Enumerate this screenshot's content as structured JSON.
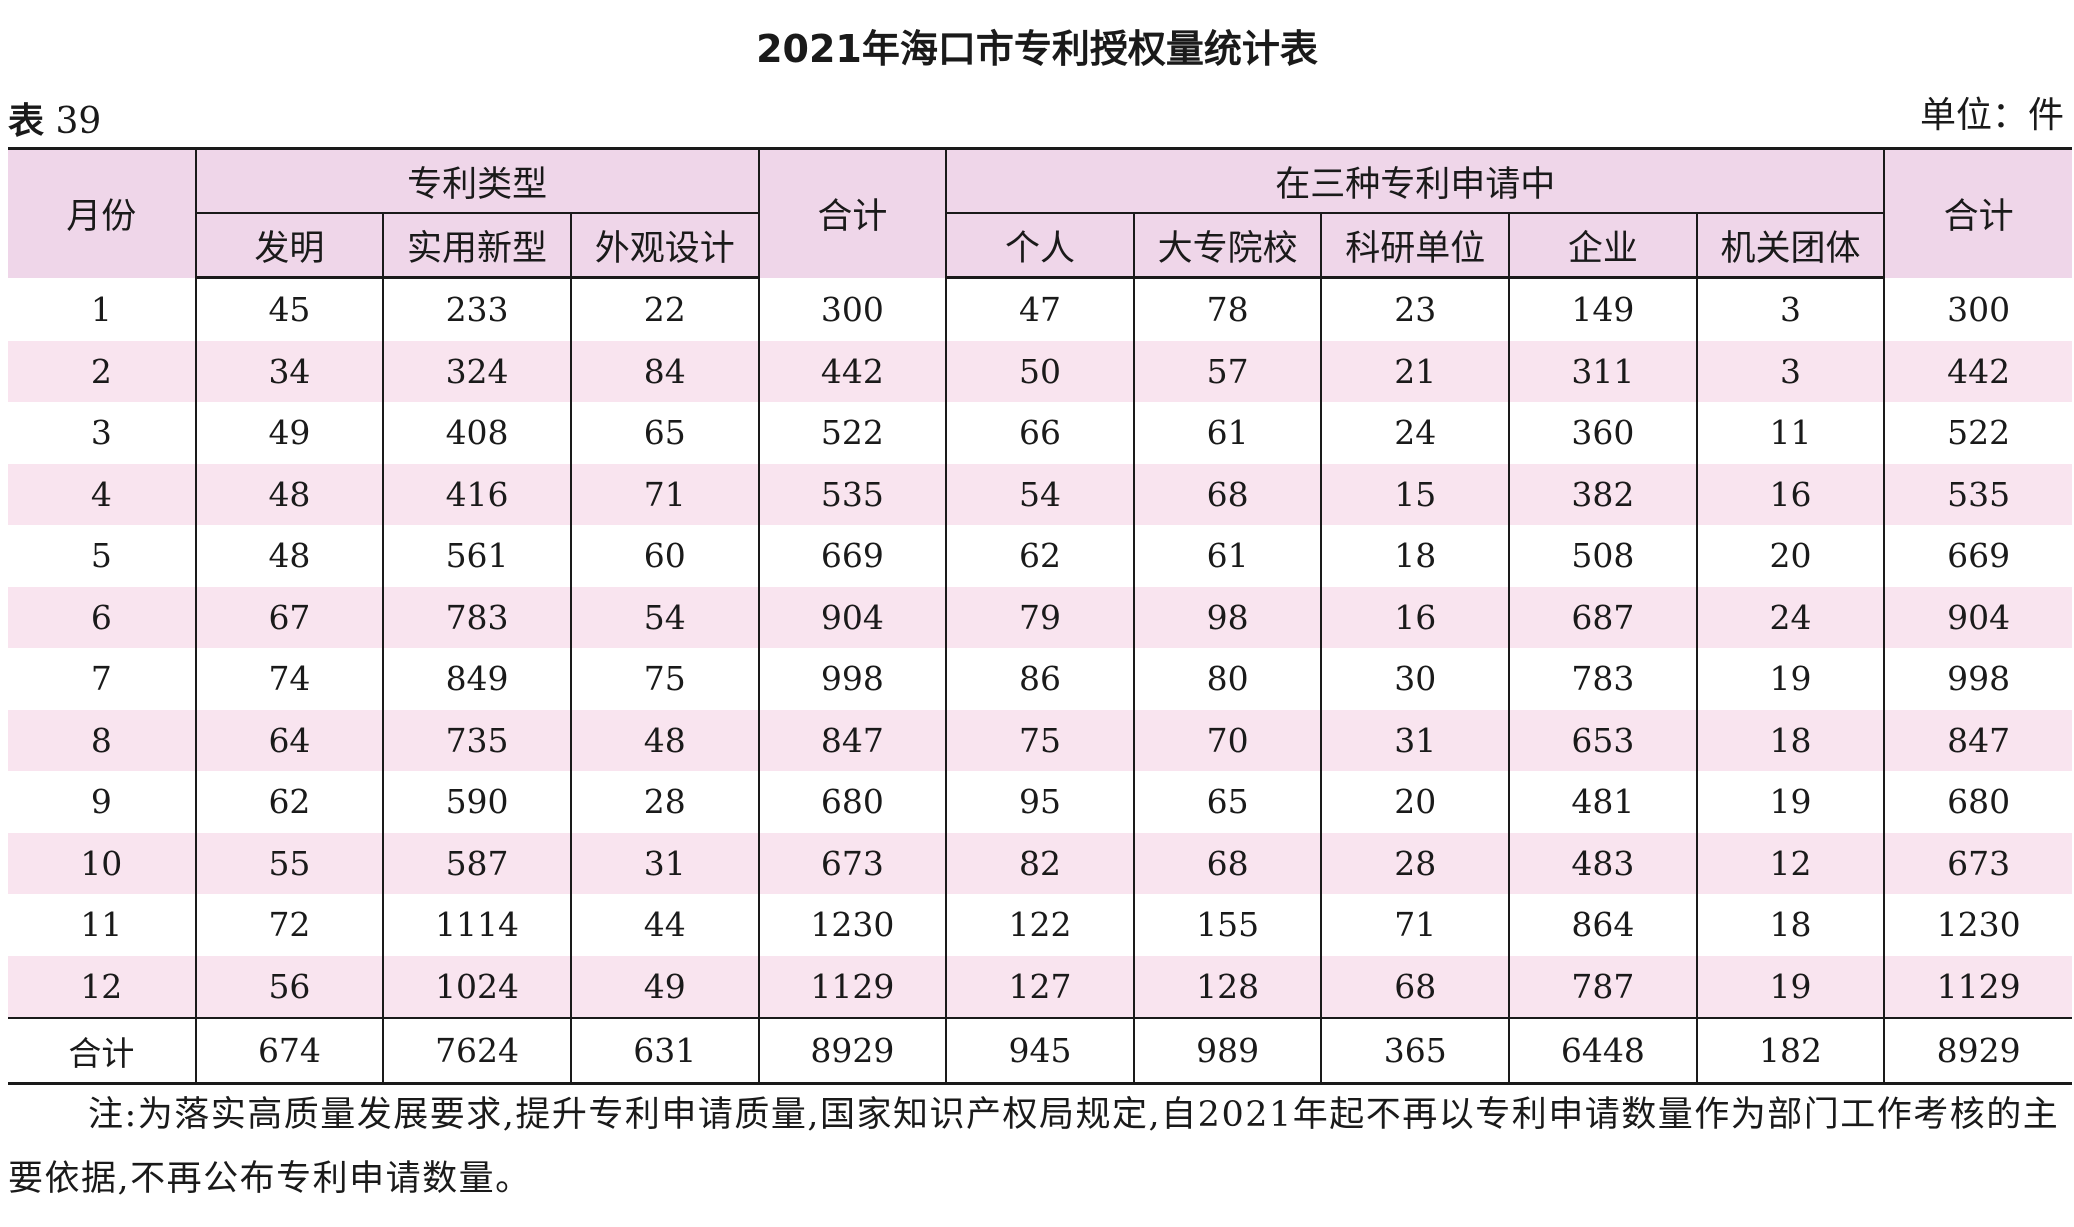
{
  "title": "2021年海口市专利授权量统计表",
  "table_label": {
    "prefix": "表",
    "number": "39"
  },
  "unit": "单位：件",
  "header": {
    "month": "月份",
    "patent_type_group": "专利类型",
    "patent_types": [
      "发明",
      "实用新型",
      "外观设计"
    ],
    "total": "合计",
    "applicant_group": "在三种专利申请中",
    "applicants": [
      "个人",
      "大专院校",
      "科研单位",
      "企业",
      "机关团体"
    ],
    "total2": "合计"
  },
  "rows": [
    [
      "1",
      "45",
      "233",
      "22",
      "300",
      "47",
      "78",
      "23",
      "149",
      "3",
      "300"
    ],
    [
      "2",
      "34",
      "324",
      "84",
      "442",
      "50",
      "57",
      "21",
      "311",
      "3",
      "442"
    ],
    [
      "3",
      "49",
      "408",
      "65",
      "522",
      "66",
      "61",
      "24",
      "360",
      "11",
      "522"
    ],
    [
      "4",
      "48",
      "416",
      "71",
      "535",
      "54",
      "68",
      "15",
      "382",
      "16",
      "535"
    ],
    [
      "5",
      "48",
      "561",
      "60",
      "669",
      "62",
      "61",
      "18",
      "508",
      "20",
      "669"
    ],
    [
      "6",
      "67",
      "783",
      "54",
      "904",
      "79",
      "98",
      "16",
      "687",
      "24",
      "904"
    ],
    [
      "7",
      "74",
      "849",
      "75",
      "998",
      "86",
      "80",
      "30",
      "783",
      "19",
      "998"
    ],
    [
      "8",
      "64",
      "735",
      "48",
      "847",
      "75",
      "70",
      "31",
      "653",
      "18",
      "847"
    ],
    [
      "9",
      "62",
      "590",
      "28",
      "680",
      "95",
      "65",
      "20",
      "481",
      "19",
      "680"
    ],
    [
      "10",
      "55",
      "587",
      "31",
      "673",
      "82",
      "68",
      "28",
      "483",
      "12",
      "673"
    ],
    [
      "11",
      "72",
      "1114",
      "44",
      "1230",
      "122",
      "155",
      "71",
      "864",
      "18",
      "1230"
    ],
    [
      "12",
      "56",
      "1024",
      "49",
      "1129",
      "127",
      "128",
      "68",
      "787",
      "19",
      "1129"
    ]
  ],
  "total_row": [
    "合计",
    "674",
    "7624",
    "631",
    "8929",
    "945",
    "989",
    "365",
    "6448",
    "182",
    "8929"
  ],
  "note": "注:为落实高质量发展要求,提升专利申请质量,国家知识产权局规定,自2021年起不再以专利申请数量作为部门工作考核的主要依据,不再公布专利申请数量。",
  "colors": {
    "header_bg": "#efd6e9",
    "stripe_bg": "#f9e4ef"
  }
}
